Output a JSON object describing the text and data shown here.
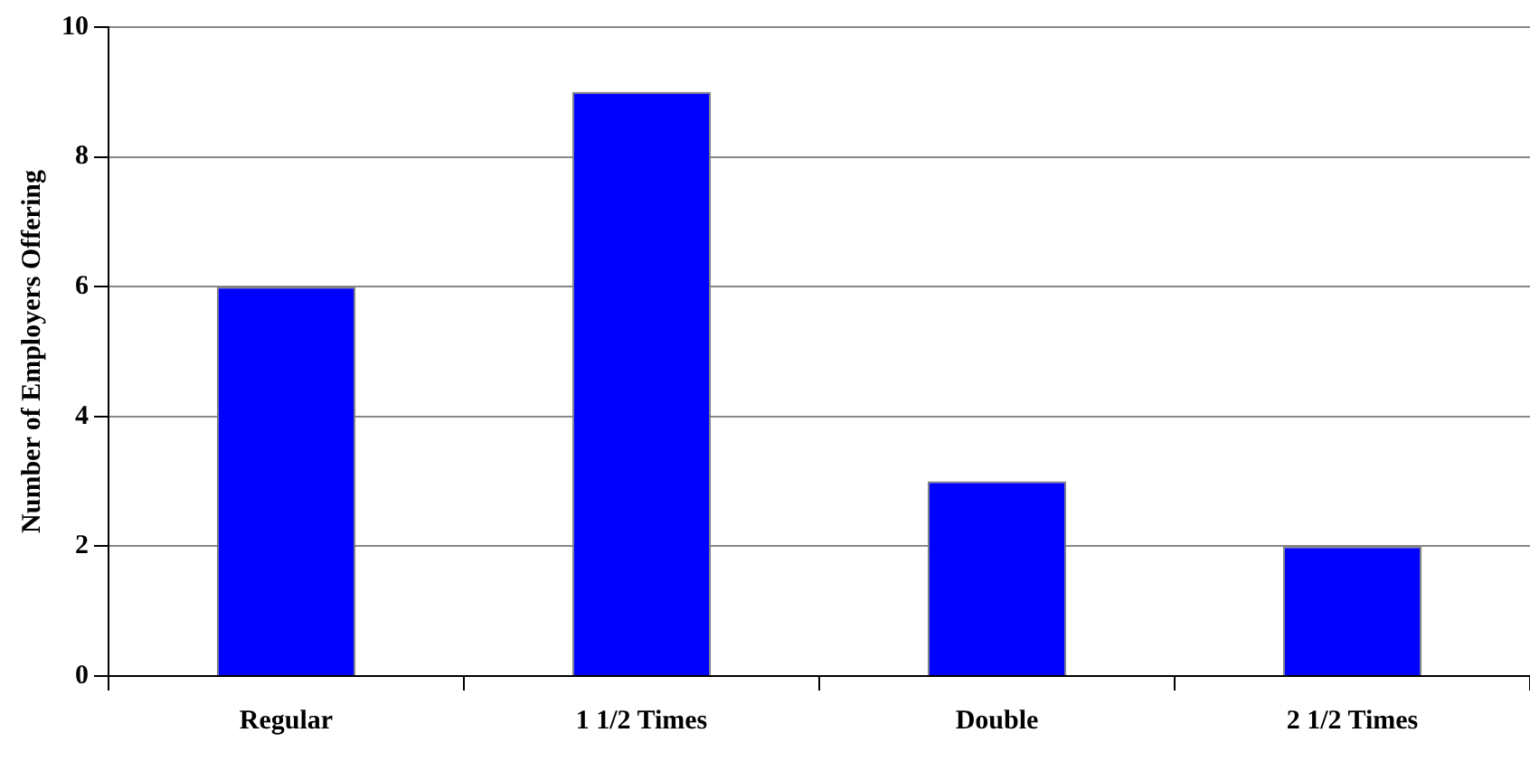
{
  "chart_data": {
    "type": "bar",
    "ylabel": "Number of Employers Offering",
    "categories": [
      "Regular",
      "1 1/2 Times",
      "Double",
      "2 1/2 Times"
    ],
    "values": [
      6,
      9,
      3,
      2
    ],
    "color": "#0000ff",
    "ylim": [
      0,
      10
    ],
    "yticks": [
      0,
      2,
      4,
      6,
      8,
      10
    ],
    "grid": "y",
    "legend": false
  }
}
